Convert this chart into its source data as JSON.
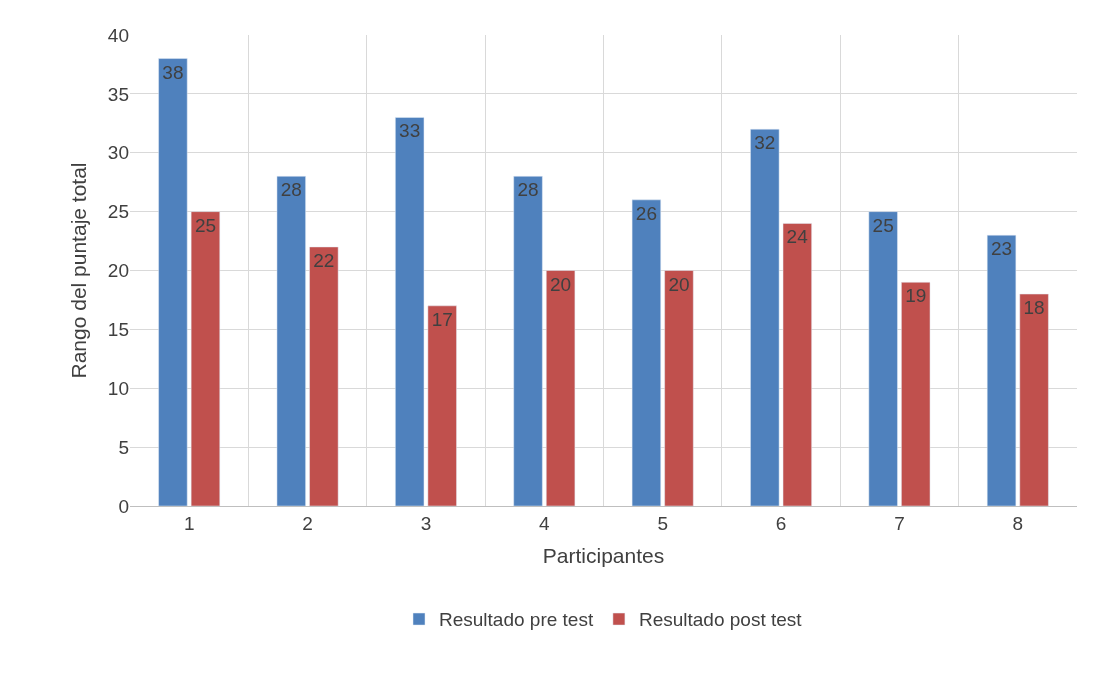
{
  "chart_data": {
    "type": "bar",
    "xlabel": "Participantes",
    "ylabel": "Rango del puntaje total",
    "categories": [
      "1",
      "2",
      "3",
      "4",
      "5",
      "6",
      "7",
      "8"
    ],
    "series": [
      {
        "name": "Resultado pre test",
        "color": "#4f81bd",
        "values": [
          38,
          28,
          33,
          28,
          26,
          32,
          25,
          23
        ]
      },
      {
        "name": "Resultado post test",
        "color": "#c0504d",
        "values": [
          25,
          22,
          17,
          20,
          20,
          24,
          19,
          18
        ]
      }
    ],
    "ylim": [
      0,
      40
    ],
    "yticks": [
      0,
      5,
      10,
      15,
      20,
      25,
      30,
      35,
      40
    ],
    "grid": true,
    "legend": "bottom",
    "data_labels": true
  }
}
